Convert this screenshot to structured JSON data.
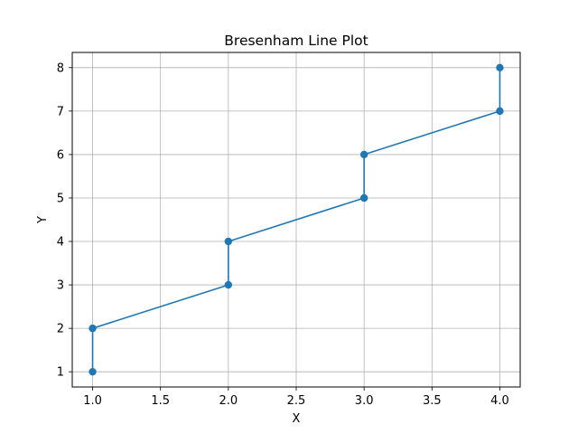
{
  "chart_data": {
    "type": "line",
    "title": "Bresenham Line Plot",
    "xlabel": "X",
    "ylabel": "Y",
    "xlim": [
      0.85,
      4.15
    ],
    "ylim": [
      0.65,
      8.35
    ],
    "xticks": [
      1.0,
      1.5,
      2.0,
      2.5,
      3.0,
      3.5,
      4.0
    ],
    "xtick_labels": [
      "1.0",
      "1.5",
      "2.0",
      "2.5",
      "3.0",
      "3.5",
      "4.0"
    ],
    "yticks": [
      1,
      2,
      3,
      4,
      5,
      6,
      7,
      8
    ],
    "ytick_labels": [
      "1",
      "2",
      "3",
      "4",
      "5",
      "6",
      "7",
      "8"
    ],
    "grid": true,
    "marker": "circle",
    "series": [
      {
        "color": "#1f77b4",
        "x": [
          1,
          1,
          2,
          2,
          3,
          3,
          4,
          4
        ],
        "y": [
          1,
          2,
          3,
          4,
          5,
          6,
          7,
          8
        ]
      }
    ]
  }
}
